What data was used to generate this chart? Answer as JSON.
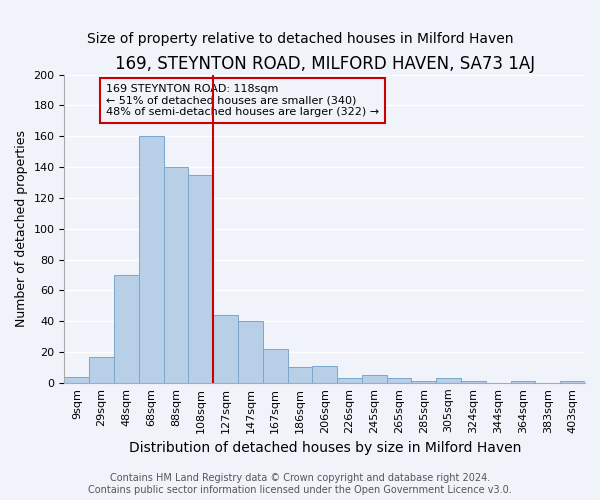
{
  "title": "169, STEYNTON ROAD, MILFORD HAVEN, SA73 1AJ",
  "subtitle": "Size of property relative to detached houses in Milford Haven",
  "xlabel": "Distribution of detached houses by size in Milford Haven",
  "ylabel": "Number of detached properties",
  "bar_labels": [
    "9sqm",
    "29sqm",
    "48sqm",
    "68sqm",
    "88sqm",
    "108sqm",
    "127sqm",
    "147sqm",
    "167sqm",
    "186sqm",
    "206sqm",
    "226sqm",
    "245sqm",
    "265sqm",
    "285sqm",
    "305sqm",
    "324sqm",
    "344sqm",
    "364sqm",
    "383sqm",
    "403sqm"
  ],
  "bar_heights": [
    4,
    17,
    70,
    160,
    140,
    135,
    44,
    40,
    22,
    10,
    11,
    3,
    5,
    3,
    1,
    3,
    1,
    0,
    1,
    0,
    1
  ],
  "bar_color": "#b8cfe8",
  "bar_edge_color": "#7ba7cc",
  "vline_x": 5.5,
  "vline_color": "#cc0000",
  "annotation_text": "169 STEYNTON ROAD: 118sqm\n← 51% of detached houses are smaller (340)\n48% of semi-detached houses are larger (322) →",
  "annotation_box_color": "#cc0000",
  "ylim": [
    0,
    200
  ],
  "yticks": [
    0,
    20,
    40,
    60,
    80,
    100,
    120,
    140,
    160,
    180,
    200
  ],
  "footer_line1": "Contains HM Land Registry data © Crown copyright and database right 2024.",
  "footer_line2": "Contains public sector information licensed under the Open Government Licence v3.0.",
  "background_color": "#f0f4fa",
  "grid_color": "#ffffff",
  "title_fontsize": 12,
  "subtitle_fontsize": 10,
  "xlabel_fontsize": 10,
  "ylabel_fontsize": 9,
  "tick_fontsize": 8,
  "footer_fontsize": 7
}
